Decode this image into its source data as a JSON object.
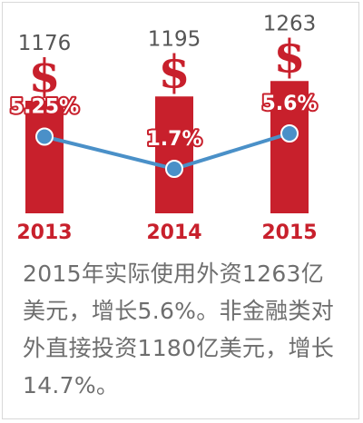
{
  "chart_data": {
    "type": "bar",
    "categories": [
      "2013",
      "2014",
      "2015"
    ],
    "values": [
      1176,
      1195,
      1263
    ],
    "currency_symbol": "$",
    "growth_rates": [
      "5.25%",
      "1.7%",
      "5.6%"
    ],
    "growth_values": [
      5.25,
      1.7,
      5.6
    ],
    "colors": {
      "bar": "#c8202c",
      "line": "#4a90c8",
      "text": "#6e6e6e"
    }
  },
  "caption": "2015年实际使用外资1263亿美元，增长5.6%。非金融类对外直接投资1180亿美元，增长14.7%。"
}
